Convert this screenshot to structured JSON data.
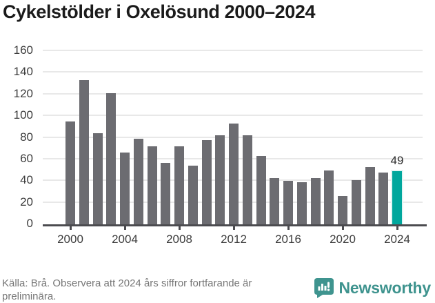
{
  "title": "Cykelstölder i Oxelösund 2000–2024",
  "chart_data": {
    "type": "bar",
    "x": [
      2000,
      2001,
      2002,
      2003,
      2004,
      2005,
      2006,
      2007,
      2008,
      2009,
      2010,
      2011,
      2012,
      2013,
      2014,
      2015,
      2016,
      2017,
      2018,
      2019,
      2020,
      2021,
      2022,
      2023,
      2024
    ],
    "values": [
      95,
      133,
      84,
      121,
      66,
      79,
      72,
      57,
      72,
      54,
      78,
      82,
      93,
      82,
      63,
      43,
      40,
      39,
      43,
      50,
      26,
      41,
      53,
      48,
      49
    ],
    "title": "Cykelstölder i Oxelösund 2000–2024",
    "xlabel": "",
    "ylabel": "",
    "ylim": [
      0,
      160
    ],
    "yticks": [
      0,
      20,
      40,
      60,
      80,
      100,
      120,
      140,
      160
    ],
    "xticks": [
      2000,
      2004,
      2008,
      2012,
      2016,
      2020,
      2024
    ],
    "grid": true,
    "legend_position": "none",
    "bar_color": "#6c6c71",
    "highlight_x": 2024,
    "highlight_color": "#00a79d",
    "highlight_label": "49"
  },
  "footer": {
    "source_note": "Källa: Brå. Observera att 2024 års siffror fortfarande är preliminära.",
    "brand": "Newsworthy"
  },
  "colors": {
    "title_text": "#1b1b1b",
    "axis_text": "#3c3c3c",
    "gridline": "#e8e8e8",
    "axis_line": "#4b4b4f",
    "footer_text": "#767676",
    "brand_teal": "#3e938e"
  }
}
